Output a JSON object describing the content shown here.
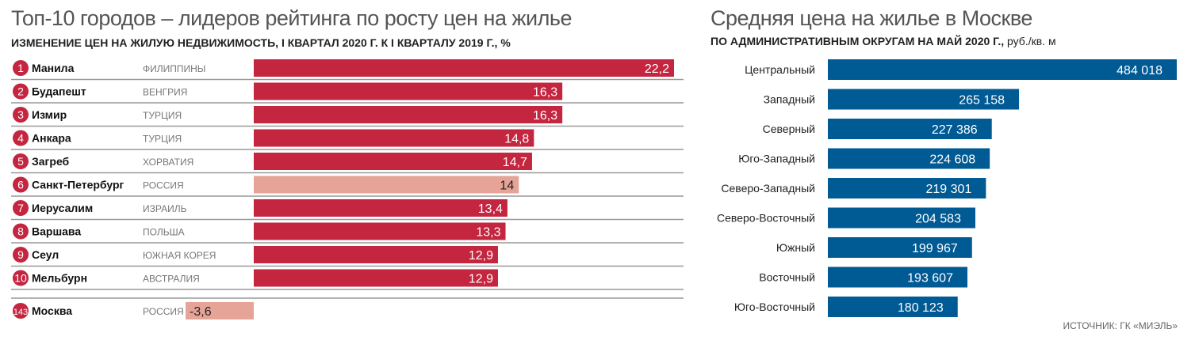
{
  "chart_data": [
    {
      "type": "bar",
      "title": "Топ-10 городов – лидеров рейтинга по росту цен на жилье",
      "subtitle": "ИЗМЕНЕНИЕ ЦЕН НА ЖИЛУЮ НЕДВИЖИМОСТЬ, I КВАРТАЛ 2020 Г. К I КВАРТАЛУ 2019 Г., %",
      "orientation": "horizontal",
      "rows": [
        {
          "rank": "1",
          "city": "Манила",
          "country": "ФИЛИППИНЫ",
          "value": 22.2,
          "label": "22,2",
          "highlight": false
        },
        {
          "rank": "2",
          "city": "Будапешт",
          "country": "ВЕНГРИЯ",
          "value": 16.3,
          "label": "16,3",
          "highlight": false
        },
        {
          "rank": "3",
          "city": "Измир",
          "country": "ТУРЦИЯ",
          "value": 16.3,
          "label": "16,3",
          "highlight": false
        },
        {
          "rank": "4",
          "city": "Анкара",
          "country": "ТУРЦИЯ",
          "value": 14.8,
          "label": "14,8",
          "highlight": false
        },
        {
          "rank": "5",
          "city": "Загреб",
          "country": "ХОРВАТИЯ",
          "value": 14.7,
          "label": "14,7",
          "highlight": false
        },
        {
          "rank": "6",
          "city": "Санкт-Петербург",
          "country": "РОССИЯ",
          "value": 14,
          "label": "14",
          "highlight": true
        },
        {
          "rank": "7",
          "city": "Иерусалим",
          "country": "ИЗРАИЛЬ",
          "value": 13.4,
          "label": "13,4",
          "highlight": false
        },
        {
          "rank": "8",
          "city": "Варшава",
          "country": "ПОЛЬША",
          "value": 13.3,
          "label": "13,3",
          "highlight": false
        },
        {
          "rank": "9",
          "city": "Сеул",
          "country": "ЮЖНАЯ КОРЕЯ",
          "value": 12.9,
          "label": "12,9",
          "highlight": false
        },
        {
          "rank": "10",
          "city": "Мельбурн",
          "country": "АВСТРАЛИЯ",
          "value": 12.9,
          "label": "12,9",
          "highlight": false
        }
      ],
      "extra_row": {
        "rank": "143",
        "city": "Москва",
        "country": "РОССИЯ",
        "value": -3.6,
        "label": "-3,6",
        "highlight": true
      },
      "colors": {
        "bar": "#c4253f",
        "highlight": "#e5a497",
        "rank_circle": "#c4253f"
      }
    },
    {
      "type": "bar",
      "title": "Средняя цена на жилье в Москве",
      "subtitle": "ПО АДМИНИСТРАТИВНЫМ ОКРУГАМ НА МАЙ 2020 Г.,",
      "unit": "руб./кв. м",
      "orientation": "horizontal",
      "categories": [
        "Центральный",
        "Западный",
        "Северный",
        "Юго-Западный",
        "Северо-Западный",
        "Северо-Восточный",
        "Южный",
        "Восточный",
        "Юго-Восточный"
      ],
      "values": [
        484018,
        265158,
        227386,
        224608,
        219301,
        204583,
        199967,
        193607,
        180123
      ],
      "labels": [
        "484 018",
        "265 158",
        "227 386",
        "224 608",
        "219 301",
        "204 583",
        "199 967",
        "193 607",
        "180 123"
      ],
      "colors": {
        "bar": "#005a94"
      }
    }
  ],
  "source": "ИСТОЧНИК: ГК «МИЭЛЬ»"
}
